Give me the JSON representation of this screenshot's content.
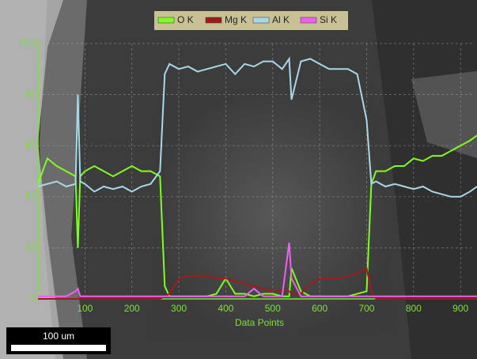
{
  "chart_data": {
    "type": "line",
    "x_label": "Data Points",
    "x": [
      0,
      20,
      40,
      60,
      80,
      85,
      90,
      100,
      120,
      140,
      160,
      180,
      200,
      220,
      240,
      260,
      270,
      280,
      300,
      320,
      340,
      360,
      380,
      400,
      420,
      440,
      460,
      480,
      500,
      520,
      535,
      540,
      560,
      580,
      600,
      620,
      640,
      660,
      680,
      700,
      710,
      720,
      740,
      760,
      780,
      800,
      820,
      840,
      860,
      880,
      900,
      920,
      935
    ],
    "series": [
      {
        "name": "O K",
        "color": "#7fff1f",
        "values": [
          45,
          55,
          52,
          50,
          48,
          20,
          48,
          50,
          52,
          50,
          48,
          50,
          52,
          50,
          50,
          48,
          5,
          1,
          1,
          1,
          1,
          1,
          2,
          8,
          2,
          2,
          1,
          2,
          2,
          1,
          1,
          12,
          3,
          1,
          1,
          1,
          1,
          1,
          2,
          3,
          45,
          50,
          50,
          52,
          52,
          55,
          54,
          56,
          56,
          58,
          60,
          62,
          64
        ]
      },
      {
        "name": "Mg K",
        "color": "#a01c1c",
        "values": [
          0,
          0,
          0,
          0,
          0,
          0,
          0,
          0,
          0,
          0,
          0,
          0,
          0,
          0,
          0,
          0,
          1,
          2,
          8,
          9,
          9,
          9,
          8,
          8,
          7,
          6,
          5,
          4,
          3,
          3,
          3,
          2,
          2,
          6,
          8,
          8,
          8,
          9,
          10,
          12,
          3,
          0,
          0,
          0,
          0,
          0,
          0,
          0,
          0,
          0,
          0,
          0,
          0
        ]
      },
      {
        "name": "Al K",
        "color": "#a8d8e8",
        "values": [
          44,
          45,
          46,
          44,
          45,
          80,
          46,
          45,
          42,
          44,
          43,
          44,
          42,
          44,
          45,
          50,
          88,
          92,
          90,
          91,
          89,
          90,
          91,
          92,
          88,
          92,
          91,
          93,
          93,
          90,
          94,
          78,
          93,
          94,
          92,
          90,
          90,
          90,
          88,
          70,
          45,
          46,
          44,
          45,
          44,
          43,
          44,
          42,
          41,
          40,
          40,
          42,
          44
        ]
      },
      {
        "name": "Si K",
        "color": "#f060f0",
        "values": [
          1,
          1,
          1,
          1,
          3,
          4,
          1,
          1,
          1,
          1,
          1,
          1,
          1,
          1,
          1,
          1,
          1,
          1,
          1,
          1,
          1,
          1,
          1,
          1,
          1,
          1,
          4,
          1,
          1,
          1,
          22,
          8,
          1,
          1,
          1,
          1,
          1,
          1,
          1,
          1,
          1,
          1,
          1,
          1,
          1,
          1,
          1,
          1,
          1,
          1,
          1,
          1,
          1
        ]
      }
    ],
    "xlim": [
      0,
      930
    ],
    "ylim": [
      0,
      100
    ],
    "xticks": [
      100,
      200,
      300,
      400,
      500,
      600,
      700,
      800,
      900
    ],
    "yticks": [
      0,
      20,
      40,
      60,
      80,
      100
    ]
  },
  "scale_bar": "100 um"
}
